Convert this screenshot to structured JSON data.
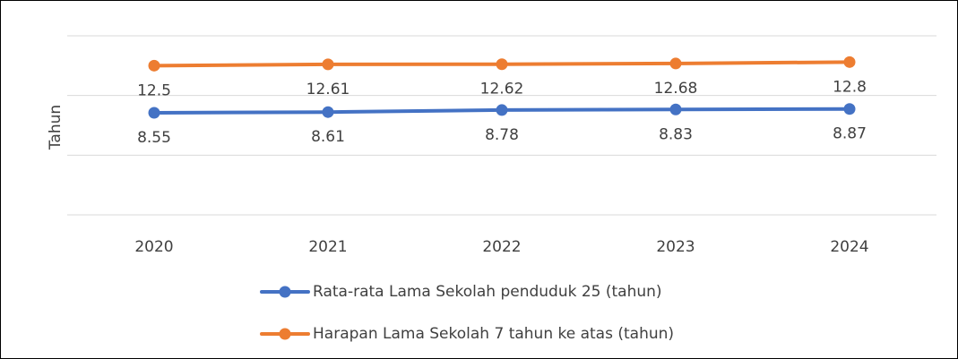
{
  "chart_data": {
    "type": "line",
    "y_label": "Tahun",
    "categories": [
      "2020",
      "2021",
      "2022",
      "2023",
      "2024"
    ],
    "series": [
      {
        "name": "Rata-rata Lama Sekolah penduduk 25 (tahun)",
        "color": "#4472c4",
        "values": [
          8.55,
          8.61,
          8.78,
          8.83,
          8.87
        ]
      },
      {
        "name": "Harapan Lama Sekolah 7 tahun ke atas (tahun)",
        "color": "#ed7d31",
        "values": [
          12.5,
          12.61,
          12.62,
          12.68,
          12.8
        ]
      }
    ],
    "ylim": [
      0,
      15
    ],
    "yticks": [
      0,
      5,
      10,
      15
    ],
    "grid": true
  }
}
